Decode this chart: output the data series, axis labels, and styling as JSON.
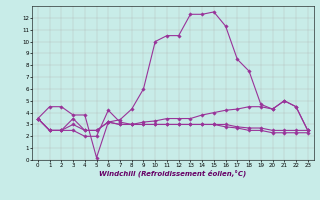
{
  "title": "",
  "xlabel": "Windchill (Refroidissement éolien,°C)",
  "xlim": [
    -0.5,
    23.5
  ],
  "ylim": [
    0,
    13
  ],
  "xticks": [
    0,
    1,
    2,
    3,
    4,
    5,
    6,
    7,
    8,
    9,
    10,
    11,
    12,
    13,
    14,
    15,
    16,
    17,
    18,
    19,
    20,
    21,
    22,
    23
  ],
  "yticks": [
    0,
    1,
    2,
    3,
    4,
    5,
    6,
    7,
    8,
    9,
    10,
    11,
    12
  ],
  "bg_color": "#c8ece8",
  "grid_color": "#b0b0b0",
  "line_color": "#993399",
  "lines": [
    {
      "x": [
        0,
        1,
        2,
        3,
        4,
        5,
        6,
        7,
        8,
        9,
        10,
        11,
        12,
        13,
        14,
        15,
        16,
        17,
        18,
        19,
        20,
        21,
        22,
        23
      ],
      "y": [
        3.5,
        4.5,
        4.5,
        3.8,
        3.8,
        0.2,
        3.2,
        3.4,
        4.3,
        6.0,
        10.0,
        10.5,
        10.5,
        12.3,
        12.3,
        12.5,
        11.3,
        8.5,
        7.5,
        4.7,
        4.3,
        5.0,
        4.5,
        2.5
      ]
    },
    {
      "x": [
        0,
        1,
        2,
        3,
        4,
        5,
        6,
        7,
        8,
        9,
        10,
        11,
        12,
        13,
        14,
        15,
        16,
        17,
        18,
        19,
        20,
        21,
        22,
        23
      ],
      "y": [
        3.5,
        2.5,
        2.5,
        3.5,
        2.5,
        2.5,
        3.2,
        3.0,
        3.0,
        3.2,
        3.3,
        3.5,
        3.5,
        3.5,
        3.8,
        4.0,
        4.2,
        4.3,
        4.5,
        4.5,
        4.3,
        5.0,
        4.5,
        2.5
      ]
    },
    {
      "x": [
        0,
        1,
        2,
        3,
        4,
        5,
        6,
        7,
        8,
        9,
        10,
        11,
        12,
        13,
        14,
        15,
        16,
        17,
        18,
        19,
        20,
        21,
        22,
        23
      ],
      "y": [
        3.5,
        2.5,
        2.5,
        3.0,
        2.5,
        2.5,
        3.2,
        3.0,
        3.0,
        3.0,
        3.0,
        3.0,
        3.0,
        3.0,
        3.0,
        3.0,
        3.0,
        2.8,
        2.7,
        2.7,
        2.5,
        2.5,
        2.5,
        2.5
      ]
    },
    {
      "x": [
        0,
        1,
        2,
        3,
        4,
        5,
        6,
        7,
        8,
        9,
        10,
        11,
        12,
        13,
        14,
        15,
        16,
        17,
        18,
        19,
        20,
        21,
        22,
        23
      ],
      "y": [
        3.5,
        2.5,
        2.5,
        2.5,
        2.0,
        2.0,
        4.2,
        3.2,
        3.0,
        3.0,
        3.0,
        3.0,
        3.0,
        3.0,
        3.0,
        3.0,
        2.8,
        2.7,
        2.5,
        2.5,
        2.3,
        2.3,
        2.3,
        2.3
      ]
    }
  ]
}
